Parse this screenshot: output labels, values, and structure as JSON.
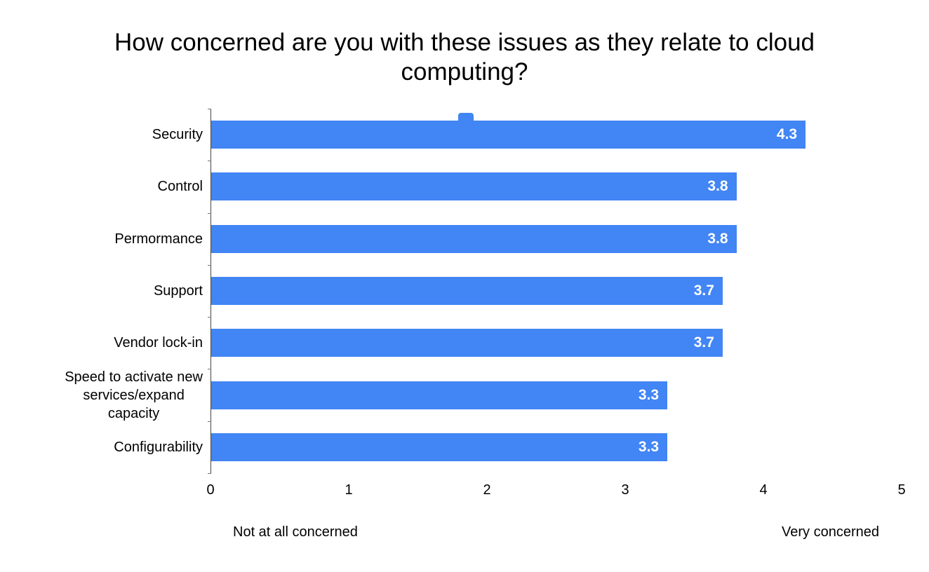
{
  "chart_data": {
    "type": "bar",
    "orientation": "horizontal",
    "title": "How concerned are you with these issues as they relate to cloud computing?",
    "categories": [
      "Security",
      "Control",
      "Permormance",
      "Support",
      "Vendor lock-in",
      "Speed to activate new\nservices/expand\ncapacity",
      "Configurability"
    ],
    "values": [
      4.3,
      3.8,
      3.8,
      3.7,
      3.7,
      3.3,
      3.3
    ],
    "xlim": [
      0,
      5
    ],
    "x_ticks": [
      0,
      1,
      2,
      3,
      4,
      5
    ],
    "grid": false,
    "legend": "none",
    "bar_color": "#4285F4",
    "value_label_color": "#FFFFFF",
    "axis_annotations": {
      "left": "Not at all concerned",
      "right": "Very concerned"
    }
  }
}
